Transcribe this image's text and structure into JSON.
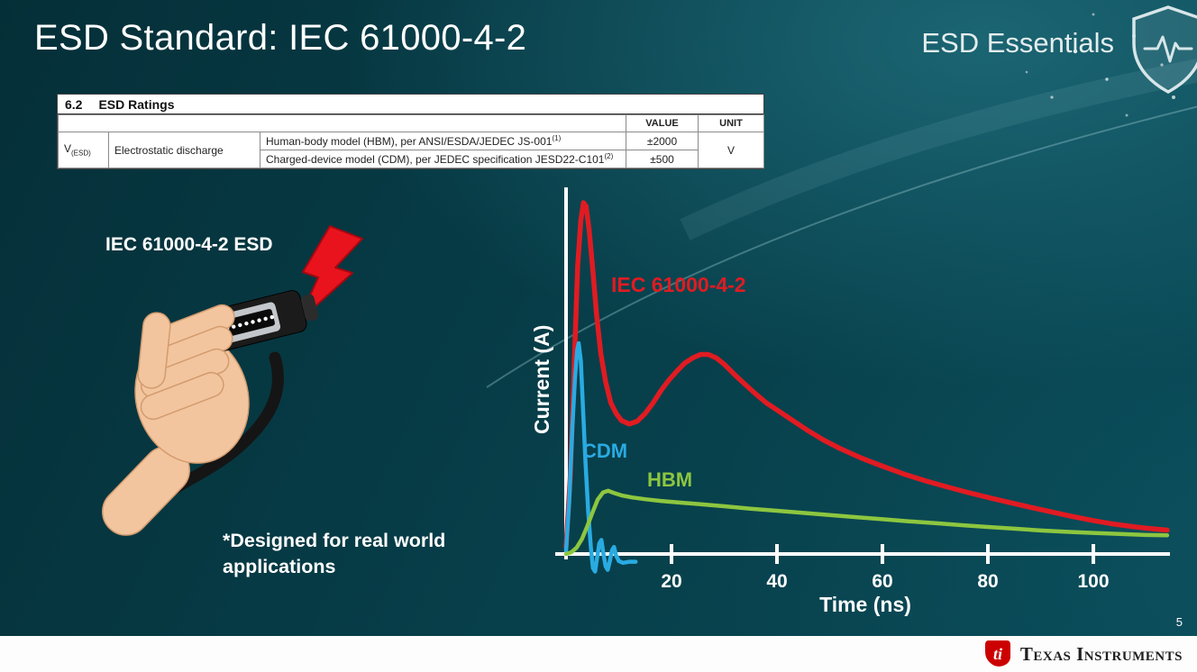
{
  "slide": {
    "title": "ESD Standard: IEC 61000-4-2",
    "brand": "ESD Essentials",
    "page_number": "5"
  },
  "ratings_table": {
    "section_number": "6.2",
    "section_title": "ESD Ratings",
    "col_value": "VALUE",
    "col_unit": "UNIT",
    "param_symbol": "V",
    "param_symbol_sub": "(ESD)",
    "param_name": "Electrostatic discharge",
    "rows": [
      {
        "model": "Human-body model (HBM), per ANSI/ESDA/JEDEC JS-001",
        "footnote": "(1)",
        "value": "±2000"
      },
      {
        "model": "Charged-device model (CDM), per JEDEC specification JESD22-C101",
        "footnote": "(2)",
        "value": "±500"
      }
    ],
    "unit": "V"
  },
  "illustration": {
    "label": "IEC 61000-4-2 ESD",
    "note_line1": "*Designed for real world",
    "note_line2": "applications"
  },
  "chart_data": {
    "type": "line",
    "title": "",
    "xlabel": "Time (ns)",
    "ylabel": "Current (A)",
    "x_ticks": [
      20,
      40,
      60,
      80,
      100
    ],
    "xlim": [
      0,
      114
    ],
    "ylim": [
      -0.08,
      1.05
    ],
    "grid": false,
    "legend_position": "inline-labels",
    "series": [
      {
        "name": "IEC 61000-4-2",
        "color": "#e11b22",
        "points": [
          [
            0,
            0.02
          ],
          [
            0.8,
            0.22
          ],
          [
            1.5,
            0.52
          ],
          [
            2.2,
            0.82
          ],
          [
            2.8,
            0.95
          ],
          [
            3.3,
            1.0
          ],
          [
            3.8,
            0.99
          ],
          [
            4.4,
            0.92
          ],
          [
            5,
            0.82
          ],
          [
            5.8,
            0.68
          ],
          [
            6.6,
            0.57
          ],
          [
            7.5,
            0.49
          ],
          [
            8.5,
            0.43
          ],
          [
            9.5,
            0.4
          ],
          [
            10.5,
            0.38
          ],
          [
            12,
            0.37
          ],
          [
            13.5,
            0.378
          ],
          [
            15,
            0.4
          ],
          [
            16.5,
            0.43
          ],
          [
            18,
            0.465
          ],
          [
            19.5,
            0.495
          ],
          [
            21,
            0.52
          ],
          [
            22.5,
            0.543
          ],
          [
            24,
            0.558
          ],
          [
            25.5,
            0.568
          ],
          [
            27,
            0.568
          ],
          [
            28.5,
            0.558
          ],
          [
            30,
            0.54
          ],
          [
            32,
            0.51
          ],
          [
            34,
            0.482
          ],
          [
            36,
            0.455
          ],
          [
            38,
            0.43
          ],
          [
            40,
            0.41
          ],
          [
            43,
            0.38
          ],
          [
            46,
            0.35
          ],
          [
            49,
            0.323
          ],
          [
            52,
            0.3
          ],
          [
            56,
            0.273
          ],
          [
            60,
            0.25
          ],
          [
            64,
            0.228
          ],
          [
            68,
            0.209
          ],
          [
            72,
            0.192
          ],
          [
            76,
            0.176
          ],
          [
            80,
            0.161
          ],
          [
            84,
            0.147
          ],
          [
            88,
            0.133
          ],
          [
            92,
            0.12
          ],
          [
            96,
            0.107
          ],
          [
            100,
            0.095
          ],
          [
            104,
            0.085
          ],
          [
            108,
            0.077
          ],
          [
            111,
            0.072
          ],
          [
            114,
            0.068
          ]
        ]
      },
      {
        "name": "CDM",
        "color": "#29abe2",
        "points": [
          [
            0,
            0.01
          ],
          [
            0.6,
            0.15
          ],
          [
            1.2,
            0.36
          ],
          [
            1.7,
            0.5
          ],
          [
            2.1,
            0.58
          ],
          [
            2.4,
            0.6
          ],
          [
            2.8,
            0.55
          ],
          [
            3.2,
            0.42
          ],
          [
            3.7,
            0.26
          ],
          [
            4.2,
            0.12
          ],
          [
            4.7,
            0.02
          ],
          [
            5.1,
            -0.04
          ],
          [
            5.5,
            -0.05
          ],
          [
            5.9,
            -0.01
          ],
          [
            6.3,
            0.03
          ],
          [
            6.7,
            0.04
          ],
          [
            7.1,
            0.0
          ],
          [
            7.5,
            -0.035
          ],
          [
            7.9,
            -0.045
          ],
          [
            8.3,
            -0.02
          ],
          [
            8.7,
            0.01
          ],
          [
            9.1,
            0.02
          ],
          [
            9.5,
            -0.005
          ],
          [
            10,
            -0.02
          ],
          [
            10.8,
            -0.025
          ],
          [
            12,
            -0.022
          ],
          [
            13.2,
            -0.022
          ]
        ]
      },
      {
        "name": "HBM",
        "color": "#8dc63f",
        "points": [
          [
            0,
            0.0
          ],
          [
            1,
            0.005
          ],
          [
            2,
            0.018
          ],
          [
            3,
            0.042
          ],
          [
            4,
            0.078
          ],
          [
            5,
            0.118
          ],
          [
            6,
            0.155
          ],
          [
            7,
            0.175
          ],
          [
            8,
            0.18
          ],
          [
            9,
            0.174
          ],
          [
            10.5,
            0.167
          ],
          [
            12.5,
            0.161
          ],
          [
            15,
            0.156
          ],
          [
            18,
            0.151
          ],
          [
            22,
            0.146
          ],
          [
            26,
            0.141
          ],
          [
            30,
            0.136
          ],
          [
            35,
            0.129
          ],
          [
            40,
            0.123
          ],
          [
            45,
            0.117
          ],
          [
            50,
            0.111
          ],
          [
            55,
            0.105
          ],
          [
            60,
            0.099
          ],
          [
            65,
            0.093
          ],
          [
            70,
            0.088
          ],
          [
            75,
            0.082
          ],
          [
            80,
            0.077
          ],
          [
            85,
            0.072
          ],
          [
            90,
            0.067
          ],
          [
            95,
            0.063
          ],
          [
            100,
            0.06
          ],
          [
            105,
            0.057
          ],
          [
            110,
            0.054
          ],
          [
            114,
            0.053
          ]
        ]
      }
    ]
  },
  "footer": {
    "brand": "Texas Instruments"
  },
  "icons": {
    "shield": "shield-pulse",
    "bolt": "lightning-bolt",
    "ti_monogram": "ti"
  },
  "colors": {
    "background_teal": "#07404b",
    "iec_red": "#e11b22",
    "cdm_blue": "#29abe2",
    "hbm_green": "#8dc63f",
    "ti_red": "#cc0000",
    "axis_white": "#ffffff"
  }
}
